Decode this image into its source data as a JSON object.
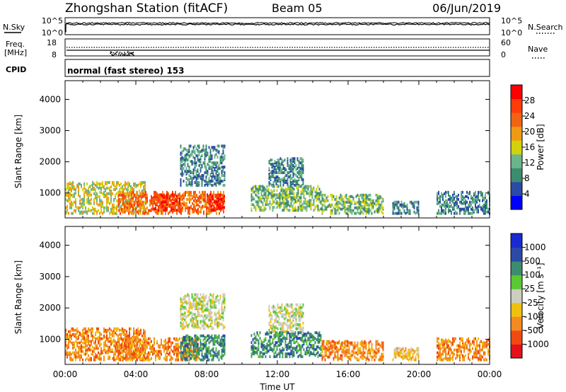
{
  "header": {
    "station": "Zhongshan Station (fitACF)",
    "beam": "Beam 05",
    "date": "06/Jun/2019"
  },
  "noise_panel": {
    "left_label": "N.Sky",
    "right_label": "N.Search",
    "ticks_left": [
      "10^5",
      "10^0"
    ],
    "ticks_right": [
      "10^5",
      "10^0"
    ]
  },
  "freq_panel": {
    "left_label_1": "Freq.",
    "left_label_2": "[MHz]",
    "right_label": "Nave",
    "ticks_left": [
      "18",
      "8"
    ],
    "ticks_right": [
      "60",
      "0"
    ]
  },
  "cpid_panel": {
    "label": "CPID",
    "text": "normal (fast stereo) 153"
  },
  "colors": {
    "power_scale": [
      "#0000ff",
      "#2a4aa6",
      "#3c8c6e",
      "#6cb48c",
      "#d2d20a",
      "#f09a14",
      "#f06414",
      "#ff3c0a",
      "#ff0000"
    ],
    "velocity_scale": [
      "#e4111a",
      "#f04a12",
      "#f58a20",
      "#f0c010",
      "#cdcdc0",
      "#5ac832",
      "#3c8c6e",
      "#2a4aa6",
      "#1a2ad2"
    ]
  },
  "chart_data": [
    {
      "type": "heatmap",
      "title": "",
      "ylabel": "Slant Range [km]",
      "xlabel": "",
      "y_ticks": [
        "1000",
        "2000",
        "3000",
        "4000"
      ],
      "ylim": [
        200,
        4600
      ],
      "colorbar": {
        "label": "Power [dB]",
        "ticks": [
          "4",
          "8",
          "12",
          "16",
          "20",
          "24",
          "28"
        ],
        "range": [
          0,
          30
        ]
      },
      "echo_regions": [
        {
          "t0": 0.0,
          "t1": 4.5,
          "r0": 300,
          "r1": 1300,
          "value": 14
        },
        {
          "t0": 3.0,
          "t1": 9.0,
          "r0": 300,
          "r1": 1000,
          "value": 22
        },
        {
          "t0": 5.0,
          "t1": 6.5,
          "r0": 400,
          "r1": 900,
          "value": 28
        },
        {
          "t0": 8.0,
          "t1": 9.0,
          "r0": 400,
          "r1": 900,
          "value": 26
        },
        {
          "t0": 6.5,
          "t1": 9.0,
          "r0": 1200,
          "r1": 2500,
          "value": 8
        },
        {
          "t0": 11.5,
          "t1": 13.5,
          "r0": 1200,
          "r1": 2100,
          "value": 8
        },
        {
          "t0": 10.5,
          "t1": 14.5,
          "r0": 400,
          "r1": 1200,
          "value": 12
        },
        {
          "t0": 14.5,
          "t1": 18.0,
          "r0": 300,
          "r1": 900,
          "value": 10
        },
        {
          "t0": 18.5,
          "t1": 20.0,
          "r0": 300,
          "r1": 700,
          "value": 6
        },
        {
          "t0": 21.0,
          "t1": 24.0,
          "r0": 300,
          "r1": 1000,
          "value": 8
        }
      ]
    },
    {
      "type": "heatmap",
      "title": "",
      "ylabel": "Slant Range [km]",
      "xlabel": "Time UT",
      "x_ticks": [
        "00:00",
        "04:00",
        "08:00",
        "12:00",
        "16:00",
        "20:00",
        "00:00"
      ],
      "xlim": [
        0,
        24
      ],
      "y_ticks": [
        "1000",
        "2000",
        "3000",
        "4000"
      ],
      "ylim": [
        200,
        4600
      ],
      "colorbar": {
        "label": "Velocity [m s⁻¹]",
        "ticks": [
          "1000",
          "500",
          "100",
          "25",
          "-25",
          "-100",
          "-500",
          "-1000"
        ],
        "range": [
          -1200,
          1200
        ]
      },
      "echo_regions": [
        {
          "t0": 0.0,
          "t1": 4.5,
          "r0": 300,
          "r1": 1300,
          "value": -300
        },
        {
          "t0": 3.0,
          "t1": 7.5,
          "r0": 300,
          "r1": 1000,
          "value": -400
        },
        {
          "t0": 6.5,
          "t1": 9.0,
          "r0": 300,
          "r1": 1100,
          "value": 200
        },
        {
          "t0": 6.5,
          "t1": 9.0,
          "r0": 1300,
          "r1": 2400,
          "value": 0
        },
        {
          "t0": 11.5,
          "t1": 13.5,
          "r0": 1200,
          "r1": 2100,
          "value": 0
        },
        {
          "t0": 10.5,
          "t1": 14.5,
          "r0": 400,
          "r1": 1200,
          "value": 300
        },
        {
          "t0": 14.5,
          "t1": 18.0,
          "r0": 300,
          "r1": 900,
          "value": -200
        },
        {
          "t0": 18.5,
          "t1": 20.0,
          "r0": 300,
          "r1": 700,
          "value": -60
        },
        {
          "t0": 21.0,
          "t1": 24.0,
          "r0": 300,
          "r1": 1000,
          "value": -100
        }
      ]
    }
  ]
}
